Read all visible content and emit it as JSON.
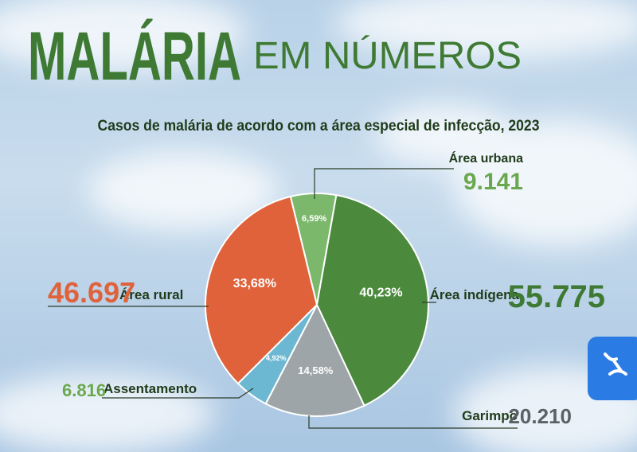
{
  "chart_data": {
    "type": "pie",
    "title": "MALÁRIA",
    "title_suffix": "EM NÚMEROS",
    "subtitle": "Casos de malária de acordo com a área especial de infecção, 2023",
    "categories": [
      "Área urbana",
      "Área indígena",
      "Garimpo",
      "Assentamento",
      "Área rural"
    ],
    "values": [
      9141,
      55775,
      20210,
      6816,
      46697
    ],
    "value_labels": [
      "9.141",
      "55.775",
      "20.210",
      "6.816",
      "46.697"
    ],
    "percent_values": [
      6.59,
      40.23,
      14.58,
      4.92,
      33.68
    ],
    "percent_labels": [
      "6,59%",
      "40,23%",
      "14,58%",
      "4,92%",
      "33,68%"
    ],
    "colors": [
      "#7cb86b",
      "#4b8a3d",
      "#9ea5a8",
      "#6cb8d2",
      "#e0623b"
    ]
  }
}
